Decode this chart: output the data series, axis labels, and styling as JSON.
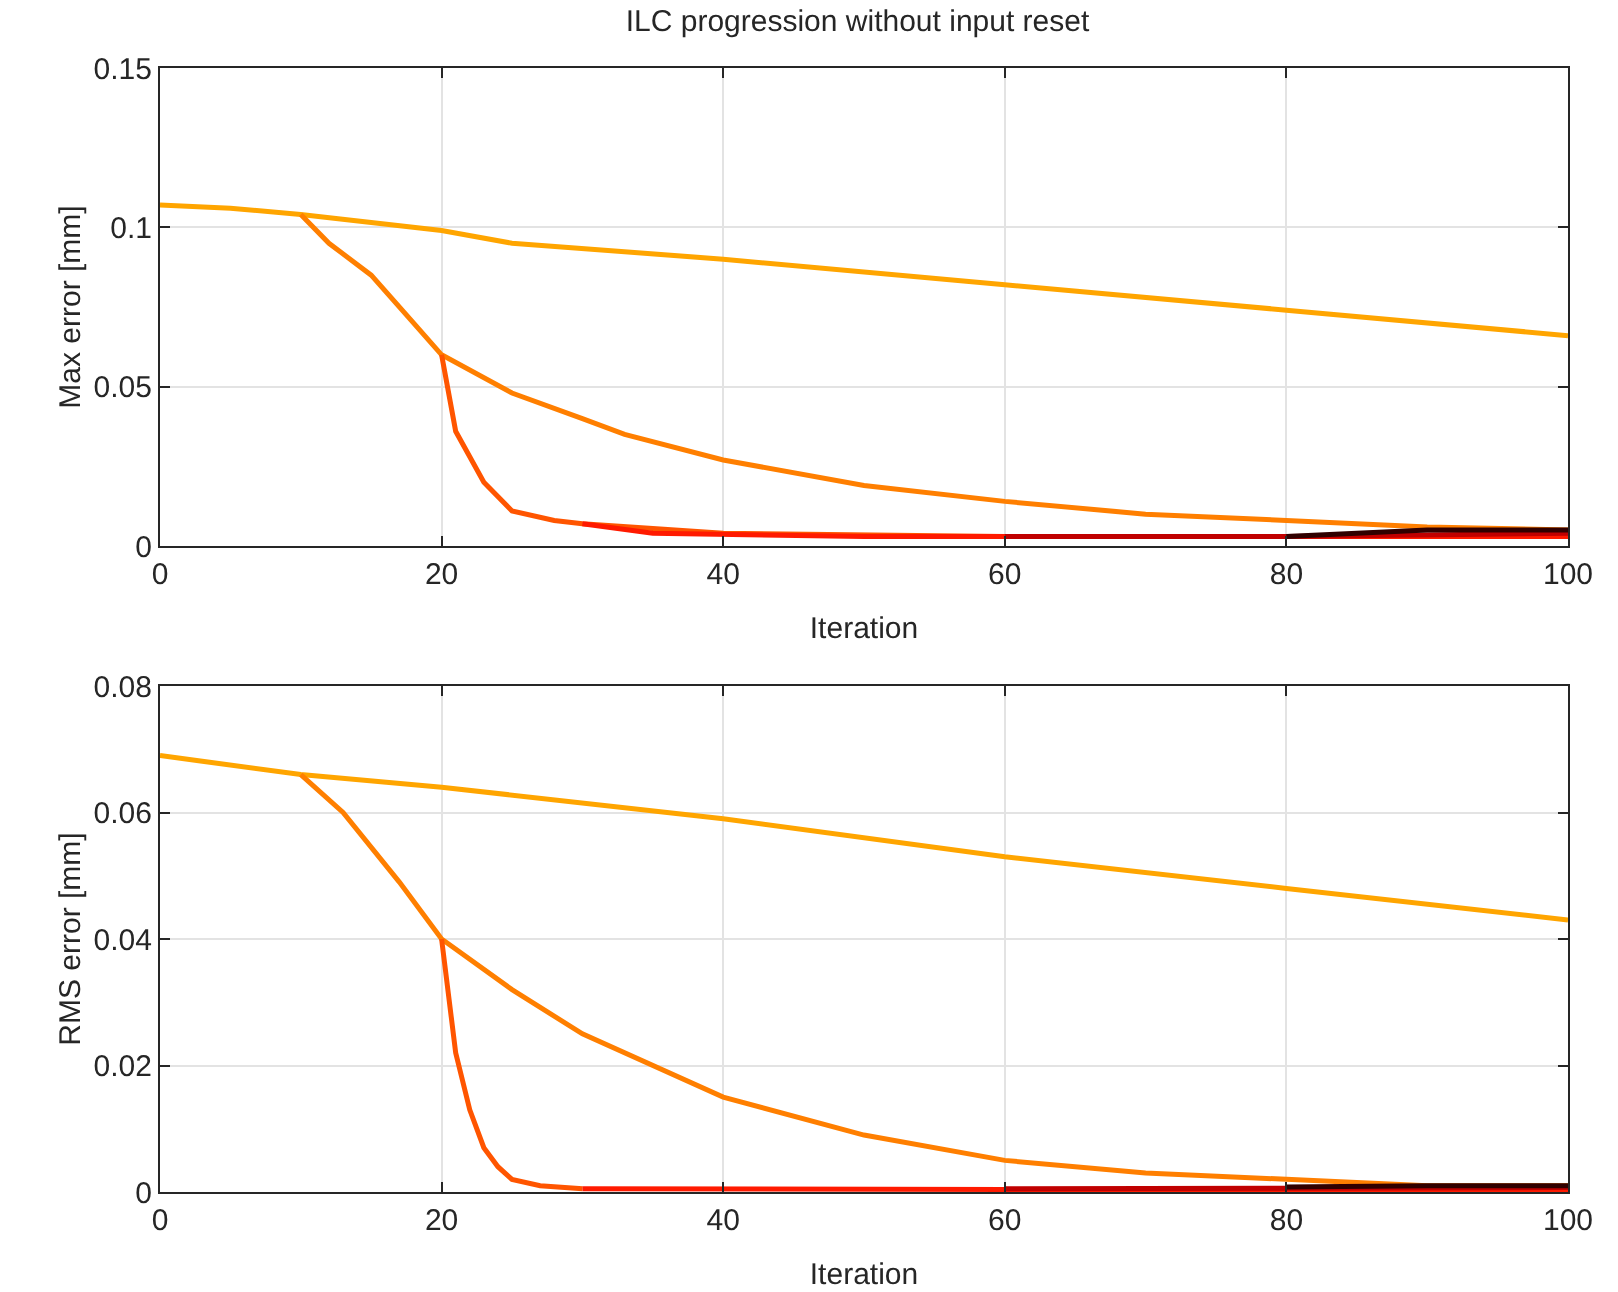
{
  "chart_data": [
    {
      "type": "line",
      "title": "ILC progression without input reset",
      "xlabel": "Iteration",
      "ylabel": "Max error [mm]",
      "xlim": [
        0,
        100
      ],
      "xticks": [
        0,
        20,
        40,
        60,
        80,
        100
      ],
      "ylim": [
        0,
        0.15
      ],
      "yticks": [
        0,
        0.05,
        0.1,
        0.15
      ],
      "grid": true,
      "series": [
        {
          "color": "#ffa500",
          "x": [
            0,
            5,
            10,
            20,
            25,
            40,
            60,
            80,
            100
          ],
          "values": [
            0.107,
            0.106,
            0.104,
            0.099,
            0.095,
            0.09,
            0.082,
            0.074,
            0.066
          ]
        },
        {
          "color": "#ff7f00",
          "x": [
            10,
            12,
            15,
            18,
            20,
            25,
            30,
            33,
            40,
            50,
            60,
            70,
            80,
            90,
            100
          ],
          "values": [
            0.104,
            0.095,
            0.085,
            0.07,
            0.06,
            0.048,
            0.04,
            0.035,
            0.027,
            0.019,
            0.014,
            0.01,
            0.008,
            0.006,
            0.005
          ]
        },
        {
          "color": "#ff5500",
          "x": [
            20,
            21,
            22,
            23,
            25,
            28,
            30,
            40,
            60,
            80,
            100
          ],
          "values": [
            0.06,
            0.036,
            0.028,
            0.02,
            0.011,
            0.008,
            0.007,
            0.004,
            0.003,
            0.003,
            0.003
          ]
        },
        {
          "color": "#ff1a00",
          "x": [
            30,
            35,
            50,
            70,
            100
          ],
          "values": [
            0.007,
            0.004,
            0.003,
            0.003,
            0.003
          ]
        },
        {
          "color": "#c00000",
          "x": [
            60,
            80,
            100
          ],
          "values": [
            0.003,
            0.003,
            0.004
          ]
        },
        {
          "color": "#300000",
          "x": [
            80,
            90,
            100
          ],
          "values": [
            0.003,
            0.005,
            0.005
          ]
        }
      ]
    },
    {
      "type": "line",
      "xlabel": "Iteration",
      "ylabel": "RMS error [mm]",
      "xlim": [
        0,
        100
      ],
      "xticks": [
        0,
        20,
        40,
        60,
        80,
        100
      ],
      "ylim": [
        0,
        0.08
      ],
      "yticks": [
        0,
        0.02,
        0.04,
        0.06,
        0.08
      ],
      "grid": true,
      "series": [
        {
          "color": "#ffa500",
          "x": [
            0,
            10,
            20,
            40,
            60,
            80,
            100
          ],
          "values": [
            0.069,
            0.066,
            0.064,
            0.059,
            0.053,
            0.048,
            0.043
          ]
        },
        {
          "color": "#ff7f00",
          "x": [
            10,
            13,
            17,
            20,
            25,
            30,
            40,
            50,
            60,
            70,
            80,
            90,
            100
          ],
          "values": [
            0.066,
            0.06,
            0.049,
            0.04,
            0.032,
            0.025,
            0.015,
            0.009,
            0.005,
            0.003,
            0.002,
            0.001,
            0.001
          ]
        },
        {
          "color": "#ff5500",
          "x": [
            20,
            21,
            22,
            23,
            24,
            25,
            27,
            30
          ],
          "values": [
            0.04,
            0.022,
            0.013,
            0.007,
            0.004,
            0.002,
            0.001,
            0.0005
          ]
        },
        {
          "color": "#ff1a00",
          "x": [
            30,
            60,
            100
          ],
          "values": [
            0.0005,
            0.0004,
            0.0004
          ]
        },
        {
          "color": "#c00000",
          "x": [
            60,
            80,
            100
          ],
          "values": [
            0.0005,
            0.0006,
            0.0007
          ]
        },
        {
          "color": "#300000",
          "x": [
            80,
            90,
            100
          ],
          "values": [
            0.0008,
            0.001,
            0.001
          ]
        }
      ]
    }
  ]
}
